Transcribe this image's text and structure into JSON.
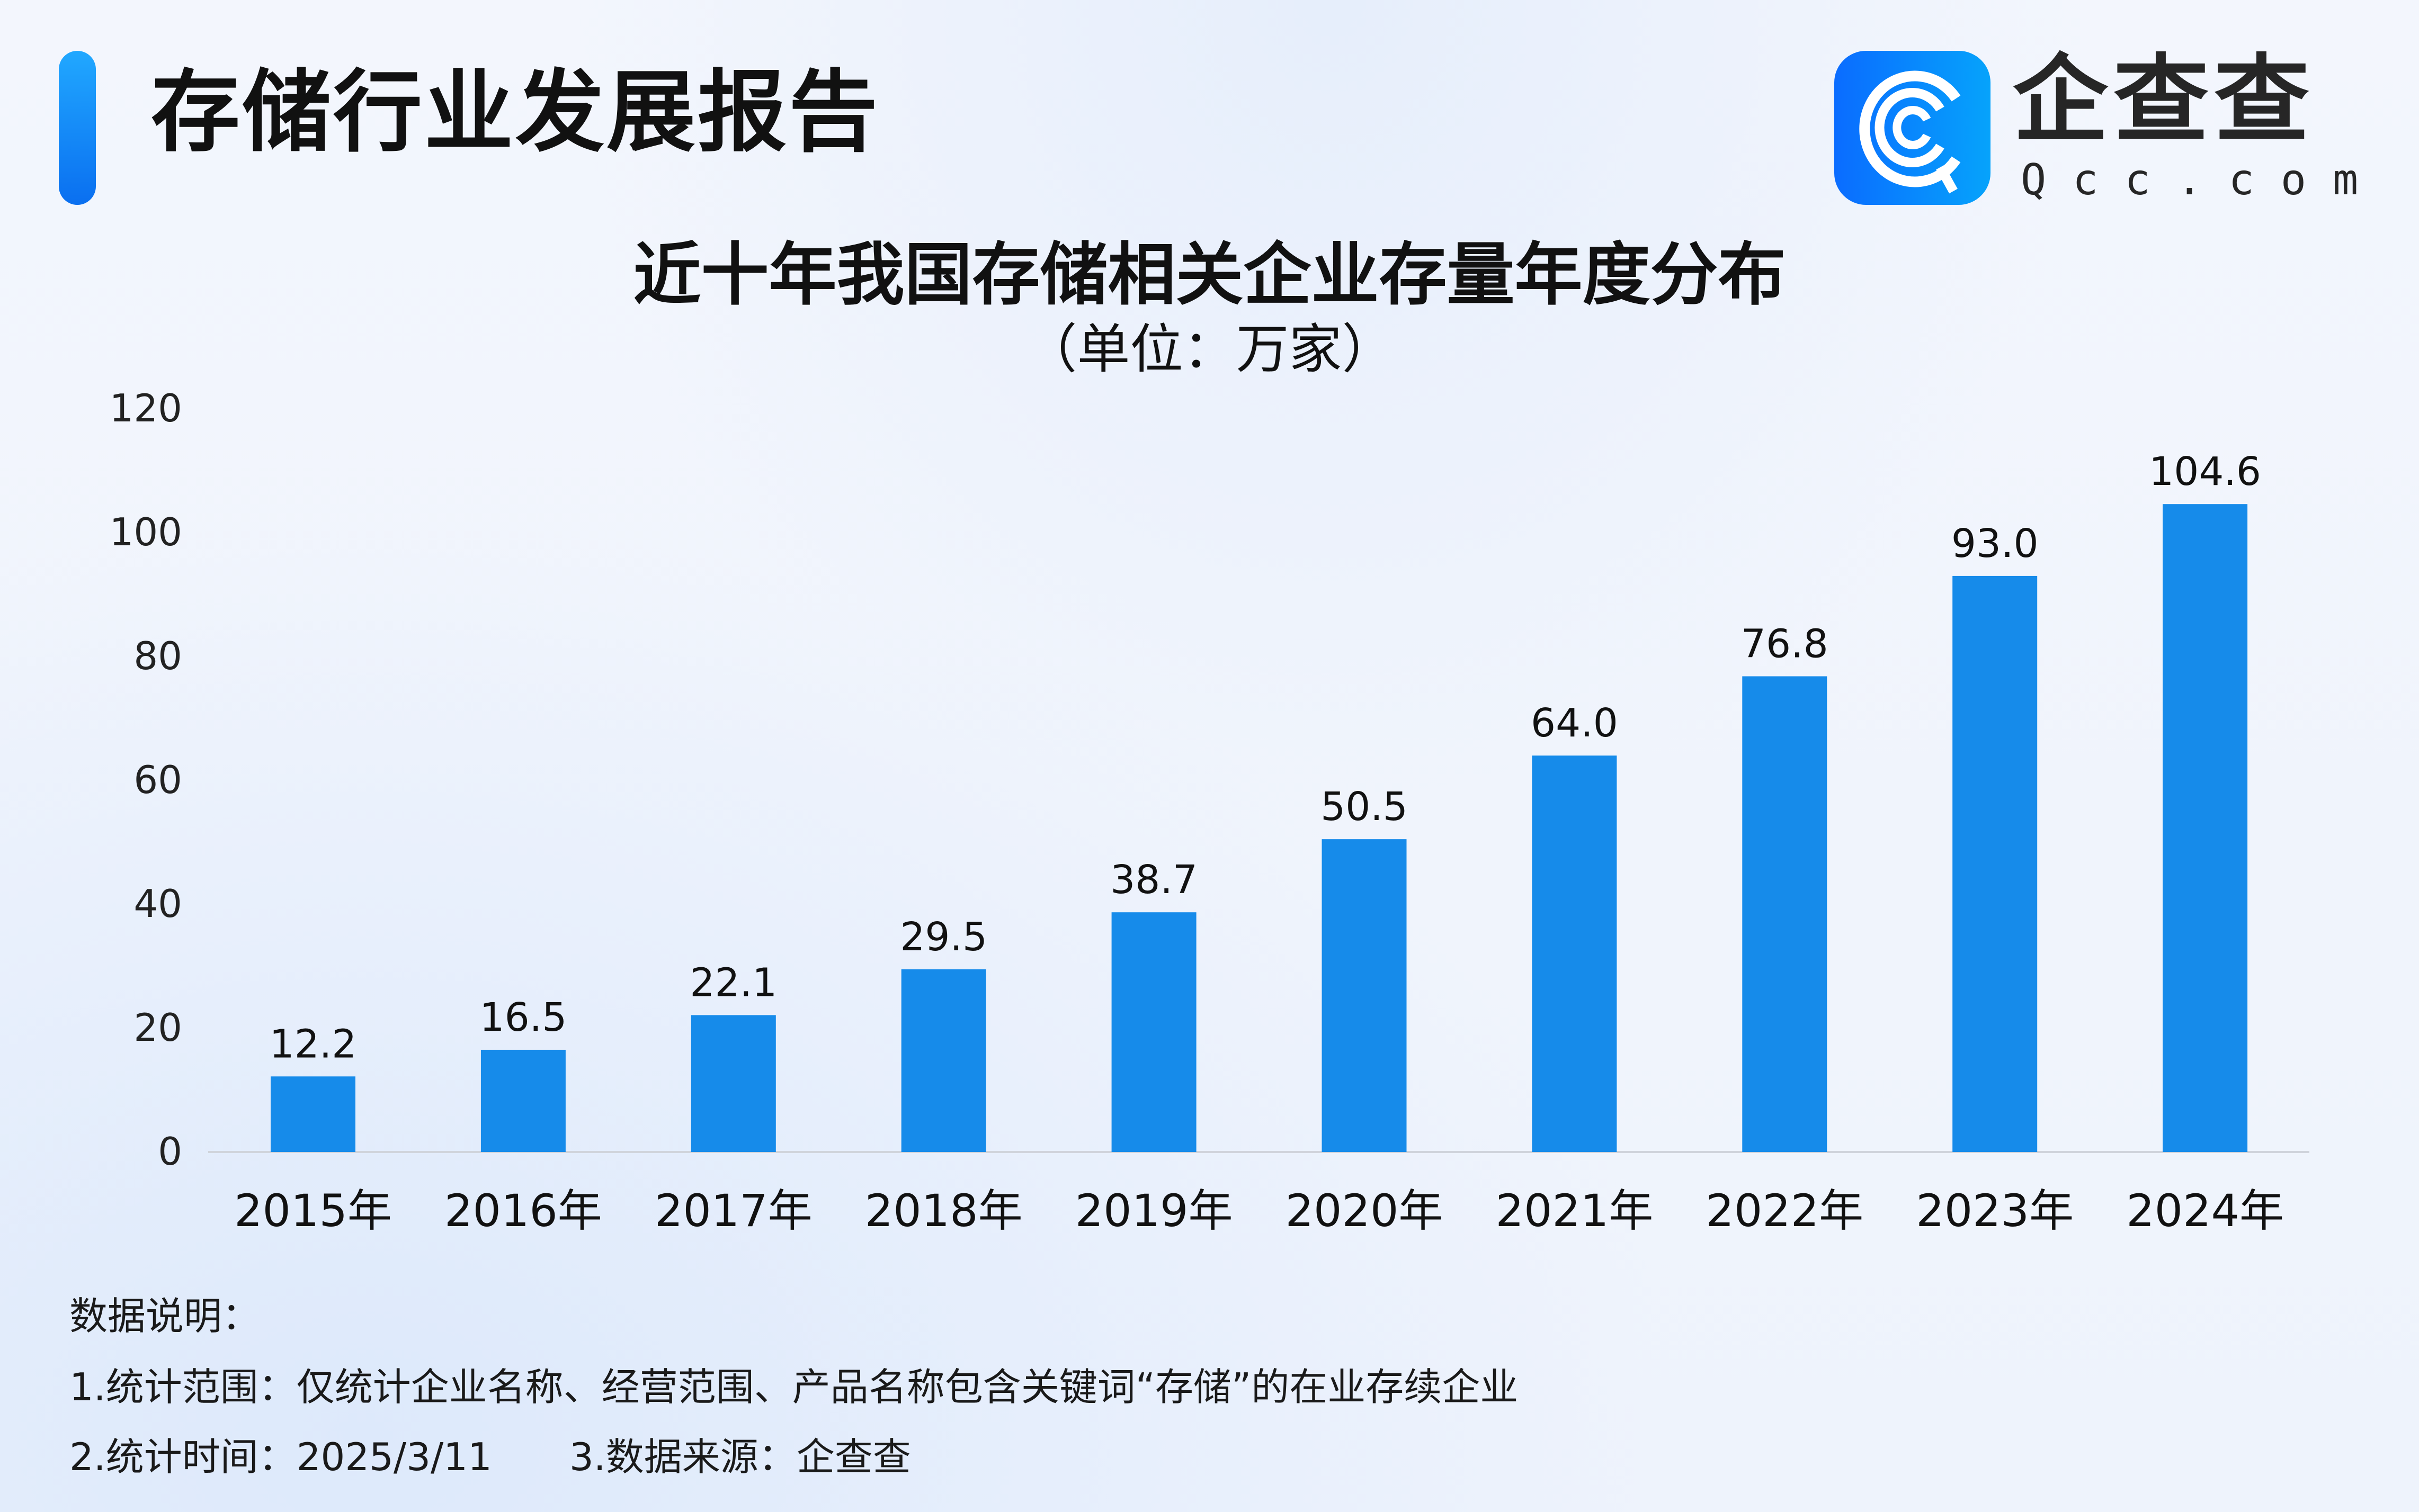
{
  "header": {
    "title": "存储行业发展报告"
  },
  "logo": {
    "name_cn": "企查查",
    "name_en": "Qcc.com",
    "brand_color": "#0a84ff"
  },
  "chart_data": {
    "type": "bar",
    "title": "近十年我国存储相关企业存量年度分布",
    "subtitle": "（单位：万家）",
    "categories": [
      "2015年",
      "2016年",
      "2017年",
      "2018年",
      "2019年",
      "2020年",
      "2021年",
      "2022年",
      "2023年",
      "2024年"
    ],
    "values": [
      12.2,
      16.5,
      22.1,
      29.5,
      38.7,
      50.5,
      64.0,
      76.8,
      93.0,
      104.6
    ],
    "data_labels": [
      "12.2",
      "16.5",
      "22.1",
      "29.5",
      "38.7",
      "50.5",
      "64.0",
      "76.8",
      "93.0",
      "104.6"
    ],
    "yticks": [
      "0",
      "20",
      "40",
      "60",
      "80",
      "100",
      "120"
    ],
    "ylim": [
      0,
      120
    ],
    "grid": false,
    "bar_color": "#168bea"
  },
  "notes": {
    "heading": "数据说明：",
    "line1": "1.统计范围：仅统计企业名称、经营范围、产品名称包含关键词“存储”的在业存续企业",
    "line2a": "2.统计时间：2025/3/11",
    "line2b": "3.数据来源：企查查"
  }
}
